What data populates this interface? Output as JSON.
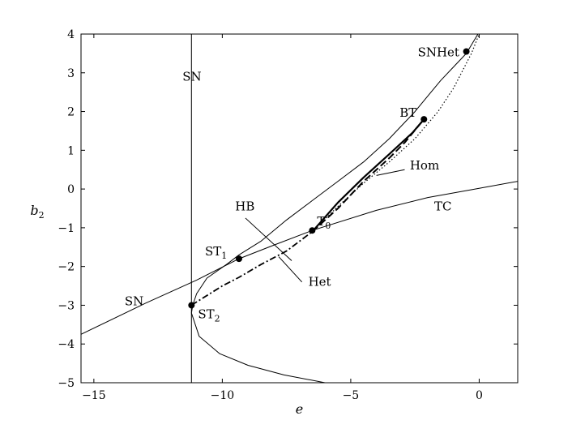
{
  "chart_data": {
    "type": "line",
    "title": "",
    "xlabel": "e",
    "ylabel": "b",
    "ylabel_sub": "2",
    "xlim": [
      -15.5,
      1.5
    ],
    "ylim": [
      -5,
      4
    ],
    "grid": false,
    "x_ticks": [
      -15,
      -10,
      -5,
      0
    ],
    "y_ticks": [
      4,
      3,
      2,
      1,
      0,
      -1,
      -2,
      -3,
      -4,
      -5
    ],
    "curves": [
      {
        "name": "SN",
        "style": "solid-thin",
        "points": [
          [
            -6.0,
            -5.0
          ],
          [
            -7.6,
            -4.8
          ],
          [
            -9.0,
            -4.55
          ],
          [
            -10.1,
            -4.25
          ],
          [
            -10.9,
            -3.8
          ],
          [
            -11.2,
            -3.2
          ],
          [
            -11.15,
            -3.0
          ],
          [
            -11.0,
            -2.7
          ],
          [
            -10.6,
            -2.3
          ],
          [
            -9.8,
            -1.93
          ],
          [
            -9.35,
            -1.7
          ],
          [
            -8.5,
            -1.35
          ],
          [
            -7.5,
            -0.8
          ],
          [
            -6.5,
            -0.3
          ],
          [
            -5.5,
            0.2
          ],
          [
            -4.5,
            0.7
          ],
          [
            -3.5,
            1.3
          ],
          [
            -2.5,
            2.0
          ],
          [
            -2.0,
            2.4
          ],
          [
            -1.5,
            2.8
          ],
          [
            -1.0,
            3.15
          ],
          [
            -0.5,
            3.5
          ],
          [
            -0.05,
            4.0
          ]
        ]
      },
      {
        "name": "SN-vertical",
        "style": "solid-thin",
        "points": [
          [
            -11.2,
            4.0
          ],
          [
            -11.2,
            -5.0
          ]
        ]
      },
      {
        "name": "TC",
        "style": "solid-thin",
        "points": [
          [
            -15.5,
            -3.75
          ],
          [
            -13.0,
            -2.95
          ],
          [
            -11.0,
            -2.35
          ],
          [
            -9.35,
            -1.8
          ],
          [
            -8.0,
            -1.45
          ],
          [
            -6.5,
            -1.07
          ],
          [
            -4.0,
            -0.55
          ],
          [
            -2.0,
            -0.22
          ],
          [
            0.0,
            0.02
          ],
          [
            1.5,
            0.2
          ]
        ]
      },
      {
        "name": "HB",
        "style": "dashed-bold",
        "points": [
          [
            -6.5,
            -1.1
          ],
          [
            -5.5,
            -0.5
          ],
          [
            -4.5,
            0.2
          ],
          [
            -3.5,
            0.8
          ],
          [
            -2.9,
            1.2
          ],
          [
            -2.15,
            1.8
          ]
        ]
      },
      {
        "name": "Hom",
        "style": "solid-bold",
        "points": [
          [
            -6.5,
            -1.1
          ],
          [
            -5.5,
            -0.35
          ],
          [
            -4.5,
            0.3
          ],
          [
            -3.5,
            0.9
          ],
          [
            -2.6,
            1.45
          ],
          [
            -2.15,
            1.8
          ]
        ]
      },
      {
        "name": "Het",
        "style": "dash-dot",
        "points": [
          [
            -11.2,
            -3.0
          ],
          [
            -10.0,
            -2.5
          ],
          [
            -9.35,
            -2.28
          ],
          [
            -8.5,
            -1.95
          ],
          [
            -7.5,
            -1.6
          ],
          [
            -6.5,
            -1.1
          ]
        ]
      },
      {
        "name": "Het-upper",
        "style": "dotted",
        "points": [
          [
            -6.5,
            -1.1
          ],
          [
            -5.5,
            -0.45
          ],
          [
            -4.5,
            0.15
          ],
          [
            -3.5,
            0.7
          ],
          [
            -2.5,
            1.3
          ],
          [
            -1.6,
            2.0
          ],
          [
            -1.0,
            2.6
          ],
          [
            -0.3,
            3.5
          ],
          [
            0.0,
            4.0
          ]
        ]
      }
    ],
    "points": [
      {
        "label": "SNHet",
        "x": -0.5,
        "y": 3.55
      },
      {
        "label": "BT",
        "x": -2.15,
        "y": 1.8
      },
      {
        "label": "T",
        "label_sub": "0",
        "x": -6.5,
        "y": -1.07
      },
      {
        "label": "ST",
        "label_sub": "1",
        "x": -9.35,
        "y": -1.8
      },
      {
        "label": "ST",
        "label_sub": "2",
        "x": -11.2,
        "y": -3.0
      }
    ],
    "curve_labels": [
      {
        "text": "SN",
        "x": -11.55,
        "y": 2.8
      },
      {
        "text": "SN",
        "x": -13.8,
        "y": -3.0
      },
      {
        "text": "HB",
        "x": -9.5,
        "y": -0.55
      },
      {
        "text": "Hom",
        "x": -2.7,
        "y": 0.5
      },
      {
        "text": "TC",
        "x": -1.75,
        "y": -0.55
      },
      {
        "text": "Het",
        "x": -6.65,
        "y": -2.5
      }
    ],
    "leader_lines": [
      {
        "from": [
          -9.1,
          -0.75
        ],
        "to": [
          -7.3,
          -1.85
        ]
      },
      {
        "from": [
          -6.9,
          -2.4
        ],
        "to": [
          -7.8,
          -1.75
        ]
      },
      {
        "from": [
          -2.9,
          0.5
        ],
        "to": [
          -4.0,
          0.35
        ]
      }
    ]
  }
}
